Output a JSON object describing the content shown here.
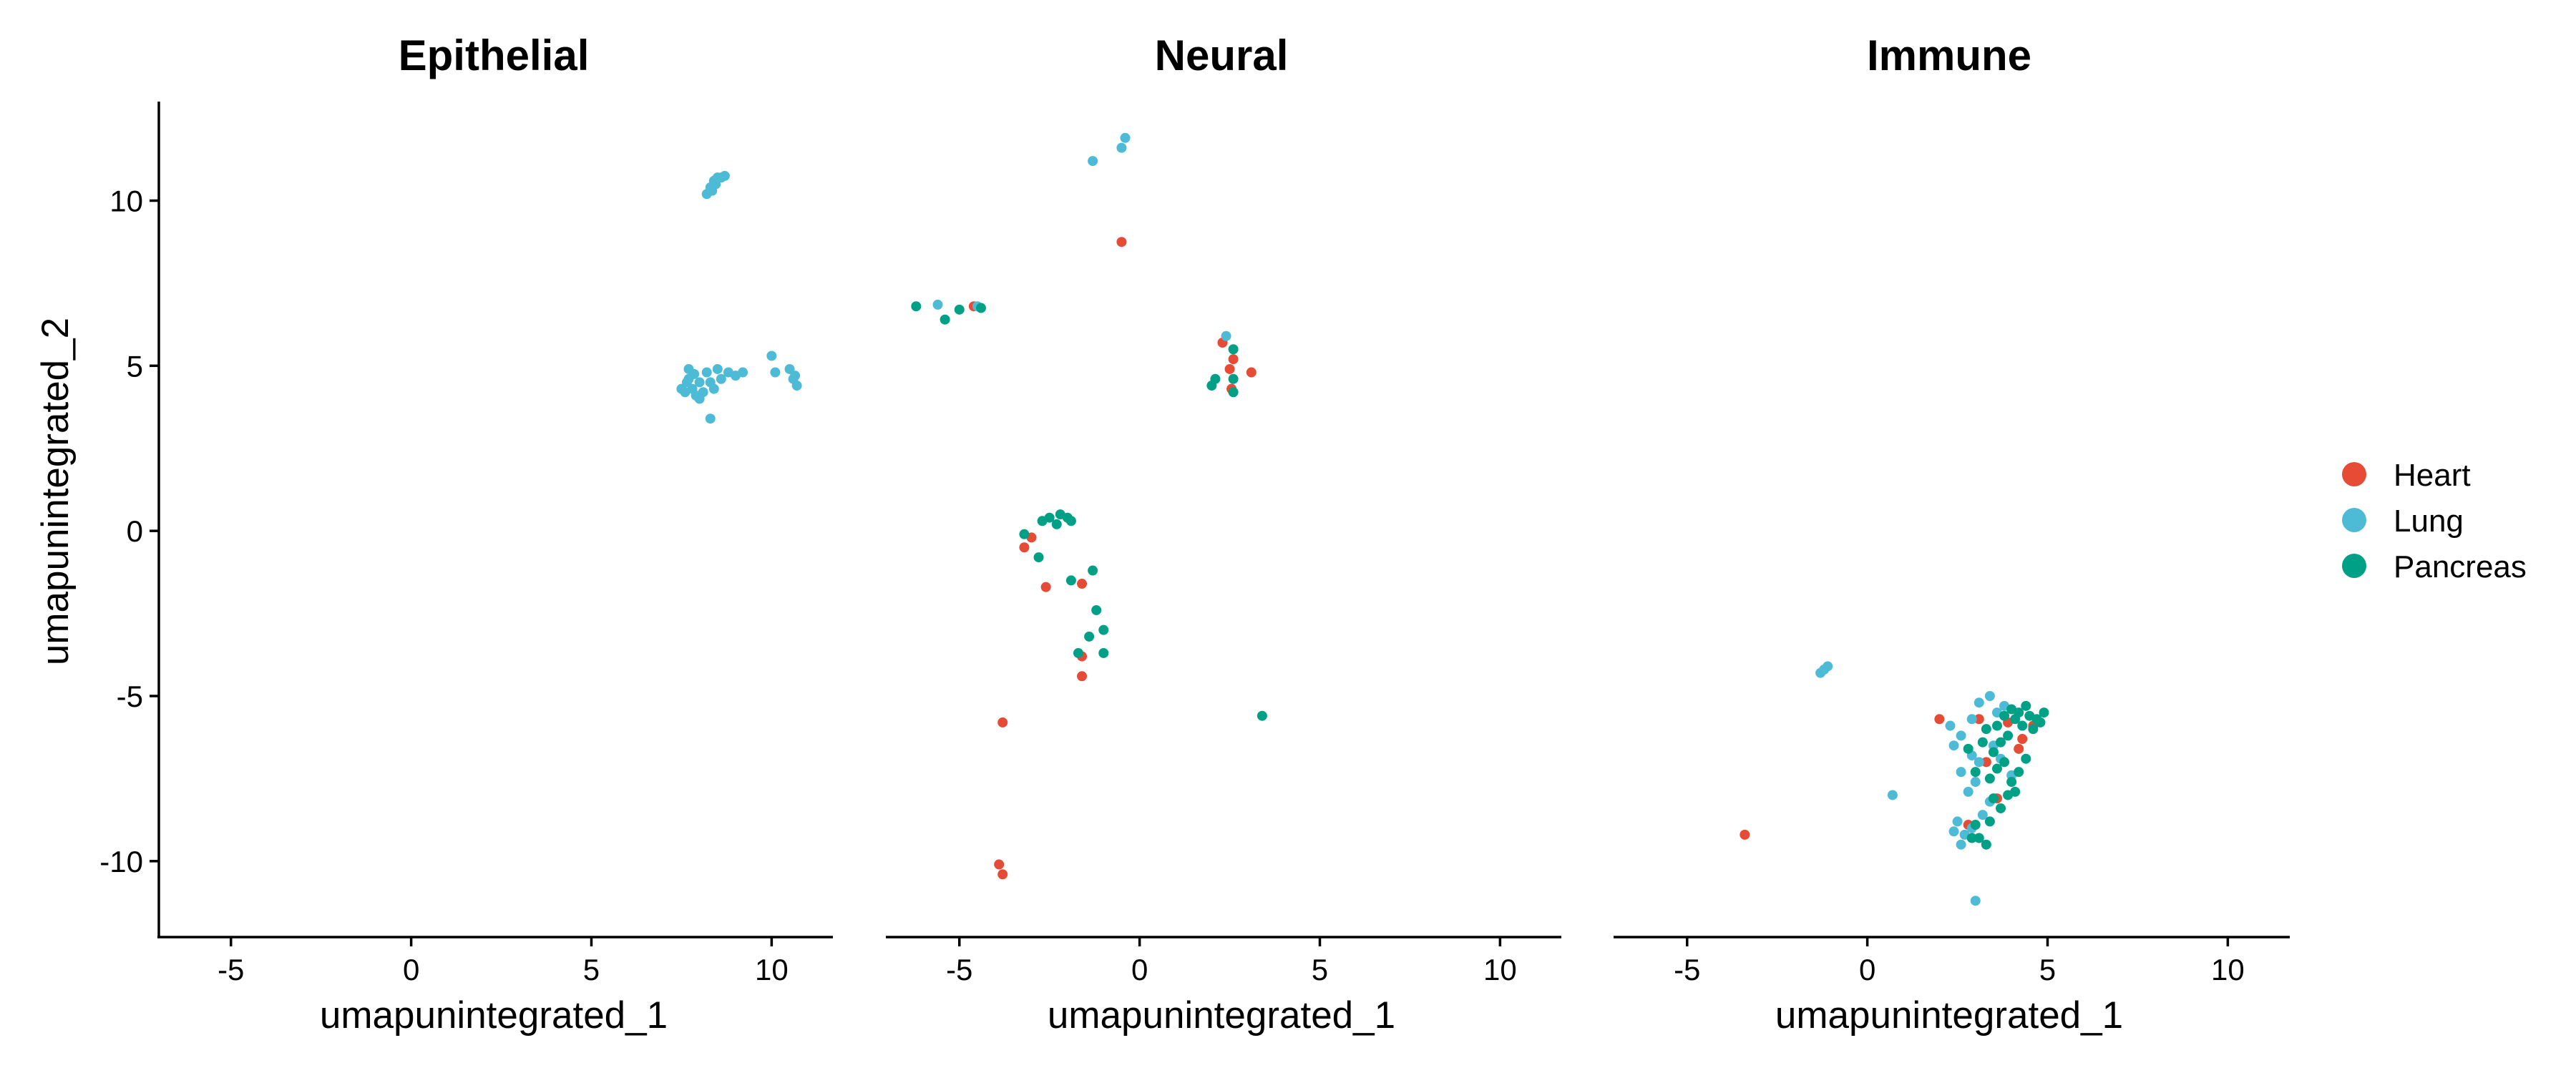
{
  "chart_data": {
    "type": "scatter",
    "facets": [
      {
        "title": "Epithelial"
      },
      {
        "title": "Neural"
      },
      {
        "title": "Immune"
      }
    ],
    "xlabel": "umapunintegrated_1",
    "ylabel": "umapunintegrated_2",
    "xlim": [
      -7,
      11.7
    ],
    "ylim": [
      -12.3,
      13
    ],
    "x_ticks": [
      -5,
      0,
      5,
      10
    ],
    "y_ticks": [
      -10,
      -5,
      0,
      5,
      10
    ],
    "x_tick_labels": [
      "-5",
      "0",
      "5",
      "10"
    ],
    "y_tick_labels": [
      "-10",
      "-5",
      "0",
      "5",
      "10"
    ],
    "grid": false,
    "legend_position": "right",
    "series": [
      {
        "name": "Heart",
        "color": "#E64B35"
      },
      {
        "name": "Lung",
        "color": "#4DBBD5"
      },
      {
        "name": "Pancreas",
        "color": "#00A087"
      }
    ],
    "points": {
      "Epithelial": {
        "Lung": [
          [
            8.5,
            10.7
          ],
          [
            8.4,
            10.6
          ],
          [
            8.3,
            10.4
          ],
          [
            8.6,
            10.7
          ],
          [
            8.2,
            10.2
          ],
          [
            8.45,
            10.5
          ],
          [
            8.7,
            10.75
          ],
          [
            8.35,
            10.3
          ],
          [
            7.7,
            4.6
          ],
          [
            7.8,
            4.3
          ],
          [
            7.6,
            4.2
          ],
          [
            8.0,
            4.5
          ],
          [
            8.2,
            4.8
          ],
          [
            8.3,
            4.5
          ],
          [
            8.5,
            4.9
          ],
          [
            7.9,
            4.1
          ],
          [
            7.5,
            4.3
          ],
          [
            8.1,
            4.2
          ],
          [
            7.85,
            4.75
          ],
          [
            8.6,
            4.6
          ],
          [
            8.0,
            4.0
          ],
          [
            7.7,
            4.9
          ],
          [
            8.4,
            4.3
          ],
          [
            8.8,
            4.8
          ],
          [
            7.65,
            4.5
          ],
          [
            9.0,
            4.7
          ],
          [
            9.2,
            4.8
          ],
          [
            8.3,
            3.4
          ],
          [
            10.0,
            5.3
          ],
          [
            10.1,
            4.8
          ],
          [
            10.6,
            4.6
          ],
          [
            10.7,
            4.4
          ],
          [
            10.5,
            4.9
          ],
          [
            10.65,
            4.7
          ]
        ]
      },
      "Neural": {
        "Heart": [
          [
            -0.5,
            8.75
          ],
          [
            -4.6,
            6.8
          ],
          [
            2.3,
            5.7
          ],
          [
            2.6,
            5.2
          ],
          [
            2.5,
            4.9
          ],
          [
            3.1,
            4.8
          ],
          [
            2.55,
            4.3
          ],
          [
            -3.2,
            -0.5
          ],
          [
            -3.0,
            -0.2
          ],
          [
            -2.6,
            -1.7
          ],
          [
            -1.6,
            -1.6
          ],
          [
            -1.6,
            -3.8
          ],
          [
            -1.6,
            -4.4
          ],
          [
            -3.8,
            -5.8
          ],
          [
            -3.9,
            -10.1
          ],
          [
            -3.8,
            -10.4
          ]
        ],
        "Lung": [
          [
            -0.4,
            11.9
          ],
          [
            -0.5,
            11.6
          ],
          [
            -1.3,
            11.2
          ],
          [
            -5.6,
            6.85
          ],
          [
            -4.5,
            6.8
          ],
          [
            2.4,
            5.9
          ]
        ],
        "Pancreas": [
          [
            -6.2,
            6.8
          ],
          [
            -5.4,
            6.4
          ],
          [
            -5.0,
            6.7
          ],
          [
            -4.4,
            6.75
          ],
          [
            2.6,
            5.5
          ],
          [
            2.1,
            4.6
          ],
          [
            2.0,
            4.4
          ],
          [
            2.6,
            4.6
          ],
          [
            2.6,
            4.2
          ],
          [
            -2.2,
            0.5
          ],
          [
            -2.5,
            0.4
          ],
          [
            -2.0,
            0.4
          ],
          [
            -2.3,
            0.2
          ],
          [
            -1.9,
            0.3
          ],
          [
            -2.7,
            0.3
          ],
          [
            -3.2,
            -0.1
          ],
          [
            -2.8,
            -0.8
          ],
          [
            -1.9,
            -1.5
          ],
          [
            -1.3,
            -1.2
          ],
          [
            -1.2,
            -2.4
          ],
          [
            -1.4,
            -3.2
          ],
          [
            -1.0,
            -3.0
          ],
          [
            -1.7,
            -3.7
          ],
          [
            -1.0,
            -3.7
          ],
          [
            3.4,
            -5.6
          ]
        ]
      },
      "Immune": {
        "Heart": [
          [
            -3.4,
            -9.2
          ],
          [
            2.0,
            -5.7
          ],
          [
            3.9,
            -5.8
          ],
          [
            4.3,
            -6.3
          ],
          [
            4.2,
            -6.6
          ],
          [
            3.3,
            -7.0
          ],
          [
            2.8,
            -8.9
          ],
          [
            3.6,
            -8.1
          ],
          [
            3.1,
            -5.7
          ],
          [
            4.6,
            -5.9
          ]
        ],
        "Lung": [
          [
            -1.2,
            -4.2
          ],
          [
            -1.1,
            -4.1
          ],
          [
            -1.3,
            -4.3
          ],
          [
            0.7,
            -8.0
          ],
          [
            3.0,
            -11.2
          ],
          [
            2.3,
            -5.9
          ],
          [
            2.6,
            -6.2
          ],
          [
            2.4,
            -6.5
          ],
          [
            2.9,
            -5.7
          ],
          [
            3.1,
            -5.2
          ],
          [
            3.4,
            -5.0
          ],
          [
            3.6,
            -5.5
          ],
          [
            3.8,
            -5.3
          ],
          [
            2.5,
            -8.8
          ],
          [
            2.7,
            -9.2
          ],
          [
            2.6,
            -9.5
          ],
          [
            2.9,
            -9.0
          ],
          [
            2.4,
            -9.1
          ],
          [
            3.2,
            -8.6
          ],
          [
            2.8,
            -7.9
          ],
          [
            3.0,
            -7.6
          ],
          [
            3.4,
            -8.2
          ],
          [
            3.1,
            -7.0
          ],
          [
            2.6,
            -7.3
          ],
          [
            3.5,
            -6.5
          ],
          [
            2.9,
            -6.8
          ],
          [
            3.7,
            -6.9
          ],
          [
            4.0,
            -7.4
          ]
        ],
        "Pancreas": [
          [
            4.2,
            -5.5
          ],
          [
            4.5,
            -5.6
          ],
          [
            4.7,
            -5.7
          ],
          [
            4.8,
            -5.8
          ],
          [
            4.6,
            -6.0
          ],
          [
            4.4,
            -5.3
          ],
          [
            4.0,
            -5.4
          ],
          [
            3.8,
            -5.6
          ],
          [
            4.9,
            -5.5
          ],
          [
            3.6,
            -5.9
          ],
          [
            3.3,
            -6.0
          ],
          [
            4.3,
            -5.9
          ],
          [
            3.9,
            -6.2
          ],
          [
            3.5,
            -6.7
          ],
          [
            3.8,
            -7.0
          ],
          [
            4.2,
            -7.3
          ],
          [
            4.0,
            -7.6
          ],
          [
            3.6,
            -7.2
          ],
          [
            3.4,
            -7.5
          ],
          [
            3.9,
            -8.0
          ],
          [
            3.7,
            -8.4
          ],
          [
            3.4,
            -8.8
          ],
          [
            3.1,
            -9.3
          ],
          [
            3.3,
            -9.5
          ],
          [
            2.9,
            -9.3
          ],
          [
            4.1,
            -7.9
          ],
          [
            3.2,
            -6.4
          ],
          [
            2.8,
            -6.6
          ],
          [
            3.0,
            -7.3
          ],
          [
            4.4,
            -6.9
          ],
          [
            3.5,
            -8.1
          ],
          [
            3.0,
            -8.9
          ],
          [
            4.1,
            -5.7
          ],
          [
            3.7,
            -6.4
          ]
        ]
      }
    }
  }
}
